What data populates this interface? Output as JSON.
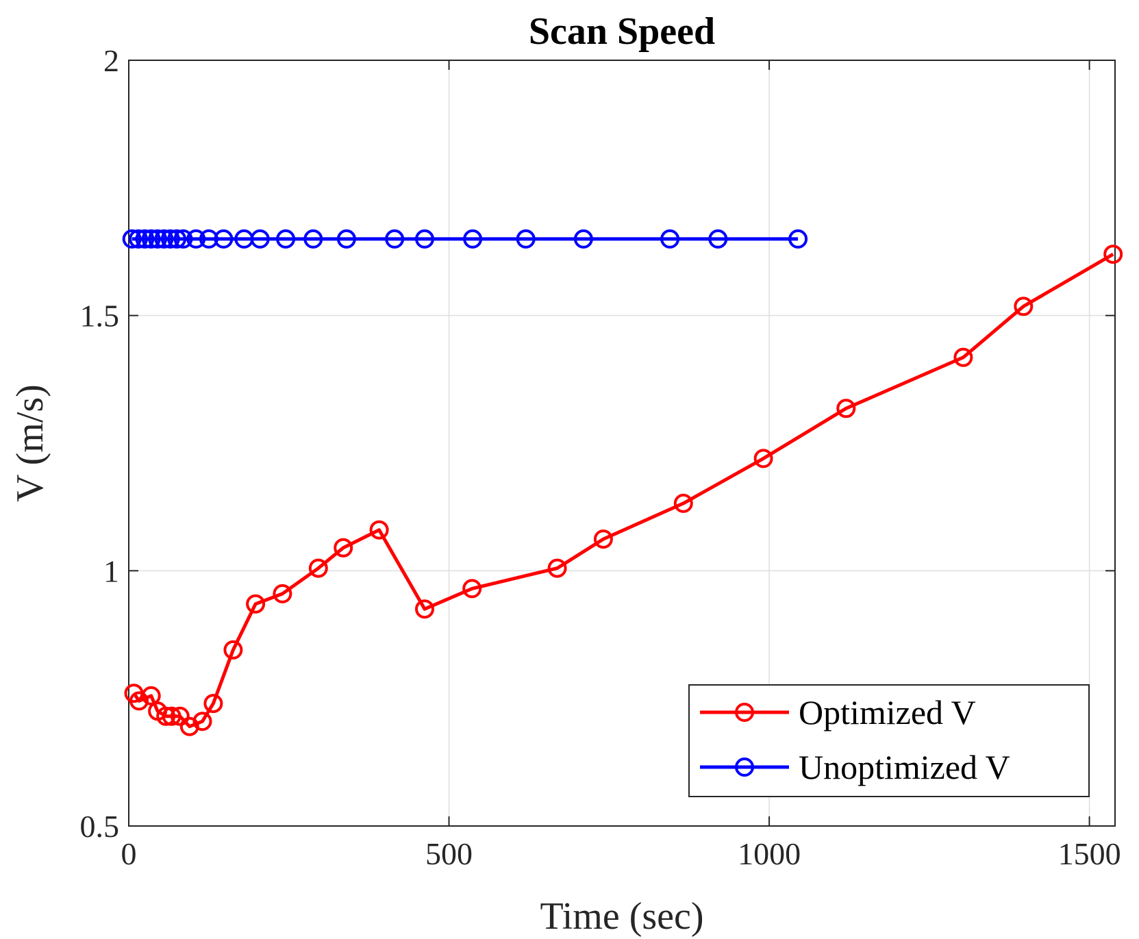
{
  "chart_data": {
    "type": "line",
    "title": "Scan Speed",
    "xlabel": "Time (sec)",
    "ylabel": "V (m/s)",
    "xlim": [
      0,
      1540
    ],
    "ylim": [
      0.5,
      2
    ],
    "xticks": [
      0,
      500,
      1000,
      1500
    ],
    "yticks": [
      0.5,
      1,
      1.5,
      2
    ],
    "xtick_labels": [
      "0",
      "500",
      "1000",
      "1500"
    ],
    "ytick_labels": [
      "0.5",
      "1",
      "1.5",
      "2"
    ],
    "grid": true,
    "legend_location": "bottom-right",
    "series": [
      {
        "name": "Optimized V",
        "color": "#ff0000",
        "marker": "circle",
        "x": [
          8,
          16,
          35,
          45,
          58,
          67,
          80,
          95,
          115,
          132,
          163,
          198,
          240,
          296,
          335,
          391,
          462,
          536,
          669,
          741,
          866,
          991,
          1120,
          1303,
          1397,
          1537
        ],
        "y": [
          0.76,
          0.745,
          0.755,
          0.725,
          0.715,
          0.715,
          0.715,
          0.695,
          0.705,
          0.74,
          0.845,
          0.935,
          0.955,
          1.005,
          1.045,
          1.08,
          0.925,
          0.965,
          1.005,
          1.062,
          1.132,
          1.22,
          1.318,
          1.418,
          1.518,
          1.62
        ]
      },
      {
        "name": "Unoptimized V",
        "color": "#0000ff",
        "marker": "circle",
        "x": [
          5,
          15,
          25,
          35,
          45,
          55,
          65,
          75,
          85,
          105,
          125,
          148,
          180,
          205,
          245,
          288,
          340,
          415,
          462,
          537,
          620,
          710,
          845,
          920,
          1045
        ],
        "y": [
          1.65,
          1.65,
          1.65,
          1.65,
          1.65,
          1.65,
          1.65,
          1.65,
          1.65,
          1.65,
          1.65,
          1.65,
          1.65,
          1.65,
          1.65,
          1.65,
          1.65,
          1.65,
          1.65,
          1.65,
          1.65,
          1.65,
          1.65,
          1.65,
          1.65
        ]
      }
    ]
  }
}
